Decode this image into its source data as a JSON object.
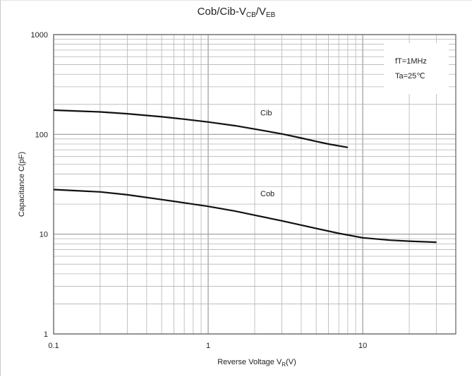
{
  "chart_data": {
    "type": "line",
    "title": {
      "main": "Cob/Cib-V",
      "sub1": "CB",
      "mid": "/V",
      "sub2": "EB"
    },
    "xlabel": {
      "text": "Reverse Voltage  V",
      "sub": "R",
      "unit": "(V)"
    },
    "ylabel": "Capacitance  C(pF)",
    "x_scale": "log",
    "y_scale": "log",
    "xlim": [
      0.1,
      40
    ],
    "ylim": [
      1,
      1000
    ],
    "x_ticks": [
      "0.1",
      "1",
      "10"
    ],
    "y_ticks": [
      "1",
      "10",
      "100",
      "1000"
    ],
    "grid": true,
    "annotations": [
      "fT=1MHz",
      "Ta=25℃"
    ],
    "series": [
      {
        "name": "Cib",
        "points": [
          [
            0.1,
            175
          ],
          [
            0.2,
            168
          ],
          [
            0.3,
            161
          ],
          [
            0.5,
            150
          ],
          [
            0.7,
            142
          ],
          [
            1,
            133
          ],
          [
            1.5,
            122
          ],
          [
            2,
            113
          ],
          [
            3,
            101
          ],
          [
            4,
            92
          ],
          [
            5,
            85
          ],
          [
            6,
            80
          ],
          [
            8,
            74
          ]
        ]
      },
      {
        "name": "Cob",
        "points": [
          [
            0.1,
            28
          ],
          [
            0.2,
            26.5
          ],
          [
            0.3,
            24.8
          ],
          [
            0.5,
            22.2
          ],
          [
            0.7,
            20.6
          ],
          [
            1,
            19
          ],
          [
            1.5,
            17
          ],
          [
            2,
            15.5
          ],
          [
            3,
            13.6
          ],
          [
            5,
            11.4
          ],
          [
            7,
            10.2
          ],
          [
            10,
            9.2
          ],
          [
            15,
            8.7
          ],
          [
            20,
            8.5
          ],
          [
            30,
            8.3
          ]
        ]
      }
    ]
  }
}
